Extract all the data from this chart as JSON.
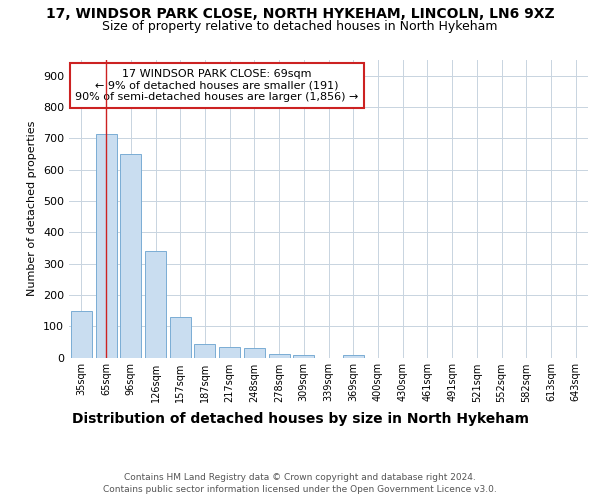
{
  "title1": "17, WINDSOR PARK CLOSE, NORTH HYKEHAM, LINCOLN, LN6 9XZ",
  "title2": "Size of property relative to detached houses in North Hykeham",
  "xlabel": "Distribution of detached houses by size in North Hykeham",
  "ylabel": "Number of detached properties",
  "categories": [
    "35sqm",
    "65sqm",
    "96sqm",
    "126sqm",
    "157sqm",
    "187sqm",
    "217sqm",
    "248sqm",
    "278sqm",
    "309sqm",
    "339sqm",
    "369sqm",
    "400sqm",
    "430sqm",
    "461sqm",
    "491sqm",
    "521sqm",
    "552sqm",
    "582sqm",
    "613sqm",
    "643sqm"
  ],
  "values": [
    150,
    715,
    650,
    340,
    130,
    42,
    35,
    30,
    12,
    8,
    0,
    8,
    0,
    0,
    0,
    0,
    0,
    0,
    0,
    0,
    0
  ],
  "bar_color": "#c9ddf0",
  "bar_edge_color": "#7aadd4",
  "vline_x": 1,
  "vline_color": "#cc2222",
  "annotation_text": "17 WINDSOR PARK CLOSE: 69sqm\n← 9% of detached houses are smaller (191)\n90% of semi-detached houses are larger (1,856) →",
  "annotation_box_color": "white",
  "annotation_box_edge": "#cc2222",
  "ylim": [
    0,
    950
  ],
  "yticks": [
    0,
    100,
    200,
    300,
    400,
    500,
    600,
    700,
    800,
    900
  ],
  "footer1": "Contains HM Land Registry data © Crown copyright and database right 2024.",
  "footer2": "Contains public sector information licensed under the Open Government Licence v3.0.",
  "bg_color": "#ffffff",
  "plot_bg_color": "#ffffff",
  "grid_color": "#c8d4e0"
}
